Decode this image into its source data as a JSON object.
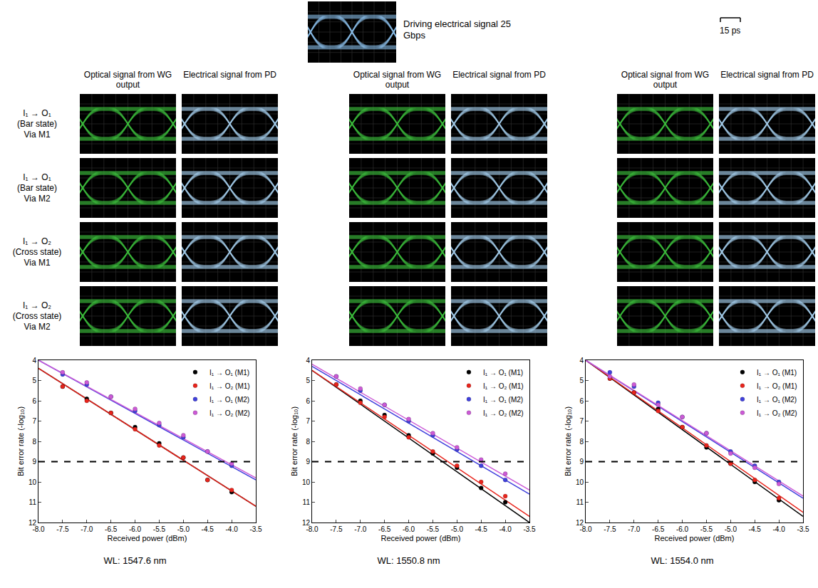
{
  "header": {
    "label": "Driving electrical signal 25 Gbps",
    "scale_bar": "15 ps"
  },
  "rows": [
    {
      "label": [
        "I₁ → O₁",
        "(Bar state)",
        "Via M1"
      ]
    },
    {
      "label": [
        "I₁ → O₁",
        "(Bar state)",
        "Via M2"
      ]
    },
    {
      "label": [
        "I₁ → O₂",
        "(Cross state)",
        "Via M1"
      ]
    },
    {
      "label": [
        "I₁ → O₂",
        "(Cross state)",
        "Via M2"
      ]
    }
  ],
  "eye_diagram_groups": [
    {
      "column_heads": [
        "Optical signal from WG output",
        "Electrical signal from PD"
      ]
    },
    {
      "column_heads": [
        "Optical signal from WG output",
        "Electrical signal from PD"
      ]
    },
    {
      "column_heads": [
        "Optical signal from WG output",
        "Electrical signal from PD"
      ]
    }
  ],
  "chart_data": [
    {
      "type": "scatter",
      "title": "WL: 1547.6 nm",
      "x_label": "Received power (dBm)",
      "y_label": "Bit error rate (-log₁₀)",
      "x": [
        -7.5,
        -7,
        -6.5,
        -6,
        -5.5,
        -5,
        -4.5,
        -4
      ],
      "xlim": [
        -8,
        -3.5
      ],
      "xticks": [
        {
          "value": -8,
          "label": "-8.0"
        },
        -7.5,
        {
          "value": -7,
          "label": "-7.0"
        },
        -6.5,
        {
          "value": -6,
          "label": "-6.0"
        },
        -5.5,
        {
          "value": -5,
          "label": "-5.0"
        },
        -4.5,
        {
          "value": -4,
          "label": "-4.0"
        },
        -3.5
      ],
      "ylim": [
        12,
        4
      ],
      "yticks": [
        4,
        5,
        6,
        7,
        8,
        9,
        10,
        11,
        12
      ],
      "legend": "top right",
      "reference_lines": [
        {
          "y": 9,
          "line_style": "dash",
          "color": "#000000"
        }
      ],
      "series": [
        {
          "name": "I₁ → O₁ (M1)",
          "color": "#000000",
          "marker": "circle",
          "values": [
            5.3,
            5.9,
            6.6,
            7.3,
            8.1,
            8.8,
            9.9,
            10.5
          ],
          "fit": {
            "x": [
              -8,
              -3.5
            ],
            "values": [
              4.4,
              11.2
            ]
          }
        },
        {
          "name": "I₁ → O₂ (M1)",
          "color": "#e8241c",
          "marker": "circle",
          "values": [
            5.3,
            6.0,
            6.6,
            7.4,
            8.2,
            8.8,
            9.9,
            10.4
          ],
          "fit": {
            "x": [
              -8,
              -3.5
            ],
            "values": [
              4.4,
              11.2
            ]
          }
        },
        {
          "name": "I₁ → O₁ (M2)",
          "color": "#4040dc",
          "marker": "circle",
          "values": [
            4.7,
            5.2,
            5.8,
            6.5,
            7.2,
            7.8,
            8.5,
            9.2
          ],
          "fit": {
            "x": [
              -8,
              -3.5
            ],
            "values": [
              4.0,
              9.9
            ]
          }
        },
        {
          "name": "I₁ → O₂ (M2)",
          "color": "#cc5ad6",
          "marker": "circle",
          "values": [
            4.6,
            5.1,
            5.8,
            6.4,
            7.1,
            7.7,
            8.5,
            9.1
          ],
          "fit": {
            "x": [
              -8,
              -3.5
            ],
            "values": [
              4.0,
              9.8
            ]
          }
        }
      ]
    },
    {
      "type": "scatter",
      "title": "WL: 1550.8 nm",
      "x_label": "Received power (dBm)",
      "y_label": "Bit error rate (-log₁₀)",
      "x": [
        -7.5,
        -7,
        -6.5,
        -6,
        -5.5,
        -5,
        -4.5,
        -4
      ],
      "xlim": [
        -8,
        -3.5
      ],
      "xticks": [
        {
          "value": -8,
          "label": "-8.0"
        },
        -7.5,
        {
          "value": -7,
          "label": "-7.0"
        },
        -6.5,
        {
          "value": -6,
          "label": "-6.0"
        },
        -5.5,
        {
          "value": -5,
          "label": "-5.0"
        },
        -4.5,
        {
          "value": -4,
          "label": "-4.0"
        },
        -3.5
      ],
      "ylim": [
        12,
        4
      ],
      "yticks": [
        4,
        5,
        6,
        7,
        8,
        9,
        10,
        11,
        12
      ],
      "legend": "top right",
      "reference_lines": [
        {
          "y": 9,
          "line_style": "dash",
          "color": "#000000"
        }
      ],
      "series": [
        {
          "name": "I₁ → O₁ (M1)",
          "color": "#000000",
          "marker": "circle",
          "values": [
            5.2,
            6.0,
            6.7,
            7.7,
            8.6,
            9.3,
            10.3,
            11.0
          ],
          "fit": {
            "x": [
              -8,
              -3.5
            ],
            "values": [
              4.5,
              12.0
            ]
          }
        },
        {
          "name": "I₁ → O₂ (M1)",
          "color": "#e8241c",
          "marker": "circle",
          "values": [
            5.2,
            6.1,
            6.8,
            7.8,
            8.5,
            9.2,
            10.0,
            10.7
          ],
          "fit": {
            "x": [
              -8,
              -3.5
            ],
            "values": [
              4.5,
              11.7
            ]
          }
        },
        {
          "name": "I₁ → O₁ (M2)",
          "color": "#4040dc",
          "marker": "circle",
          "values": [
            4.8,
            5.5,
            6.2,
            7.0,
            7.7,
            8.4,
            9.2,
            9.9
          ],
          "fit": {
            "x": [
              -8,
              -3.5
            ],
            "values": [
              4.3,
              10.6
            ]
          }
        },
        {
          "name": "I₁ → O₂ (M2)",
          "color": "#cc5ad6",
          "marker": "circle",
          "values": [
            4.8,
            5.4,
            6.2,
            6.9,
            7.6,
            8.3,
            8.9,
            9.6
          ],
          "fit": {
            "x": [
              -8,
              -3.5
            ],
            "values": [
              4.2,
              10.4
            ]
          }
        }
      ]
    },
    {
      "type": "scatter",
      "title": "WL: 1554.0 nm",
      "x_label": "Received power (dBm)",
      "y_label": "Bit error rate (-log₁₀)",
      "x": [
        -7.5,
        -7,
        -6.5,
        -6,
        -5.5,
        -5,
        -4.5,
        -4
      ],
      "xlim": [
        -8,
        -3.5
      ],
      "xticks": [
        {
          "value": -8,
          "label": "-8.0"
        },
        -7.5,
        {
          "value": -7,
          "label": "-7.0"
        },
        -6.5,
        {
          "value": -6,
          "label": "-6.0"
        },
        -5.5,
        {
          "value": -5,
          "label": "-5.0"
        },
        -4.5,
        {
          "value": -4,
          "label": "-4.0"
        },
        -3.5
      ],
      "ylim": [
        12,
        4
      ],
      "yticks": [
        4,
        5,
        6,
        7,
        8,
        9,
        10,
        11,
        12
      ],
      "legend": "top right",
      "reference_lines": [
        {
          "y": 9,
          "line_style": "dash",
          "color": "#000000"
        }
      ],
      "series": [
        {
          "name": "I₁ → O₁ (M1)",
          "color": "#000000",
          "marker": "circle",
          "values": [
            4.9,
            5.6,
            6.4,
            7.3,
            8.3,
            9.1,
            10.0,
            10.9
          ],
          "fit": {
            "x": [
              -8,
              -3.5
            ],
            "values": [
              4.0,
              11.7
            ]
          }
        },
        {
          "name": "I₁ → O₂ (M1)",
          "color": "#e8241c",
          "marker": "circle",
          "values": [
            4.9,
            5.6,
            6.5,
            7.3,
            8.2,
            9.1,
            9.9,
            10.8
          ],
          "fit": {
            "x": [
              -8,
              -3.5
            ],
            "values": [
              4.0,
              11.5
            ]
          }
        },
        {
          "name": "I₁ → O₁ (M2)",
          "color": "#4040dc",
          "marker": "circle",
          "values": [
            4.6,
            5.3,
            6.1,
            6.8,
            7.6,
            8.5,
            9.2,
            10.0
          ],
          "fit": {
            "x": [
              -8,
              -3.5
            ],
            "values": [
              4.0,
              10.8
            ]
          }
        },
        {
          "name": "I₁ → O₂ (M2)",
          "color": "#cc5ad6",
          "marker": "circle",
          "values": [
            4.8,
            5.2,
            6.2,
            6.8,
            7.6,
            8.6,
            9.3,
            10.1
          ],
          "fit": {
            "x": [
              -8,
              -3.5
            ],
            "values": [
              4.0,
              10.7
            ]
          }
        }
      ]
    }
  ]
}
